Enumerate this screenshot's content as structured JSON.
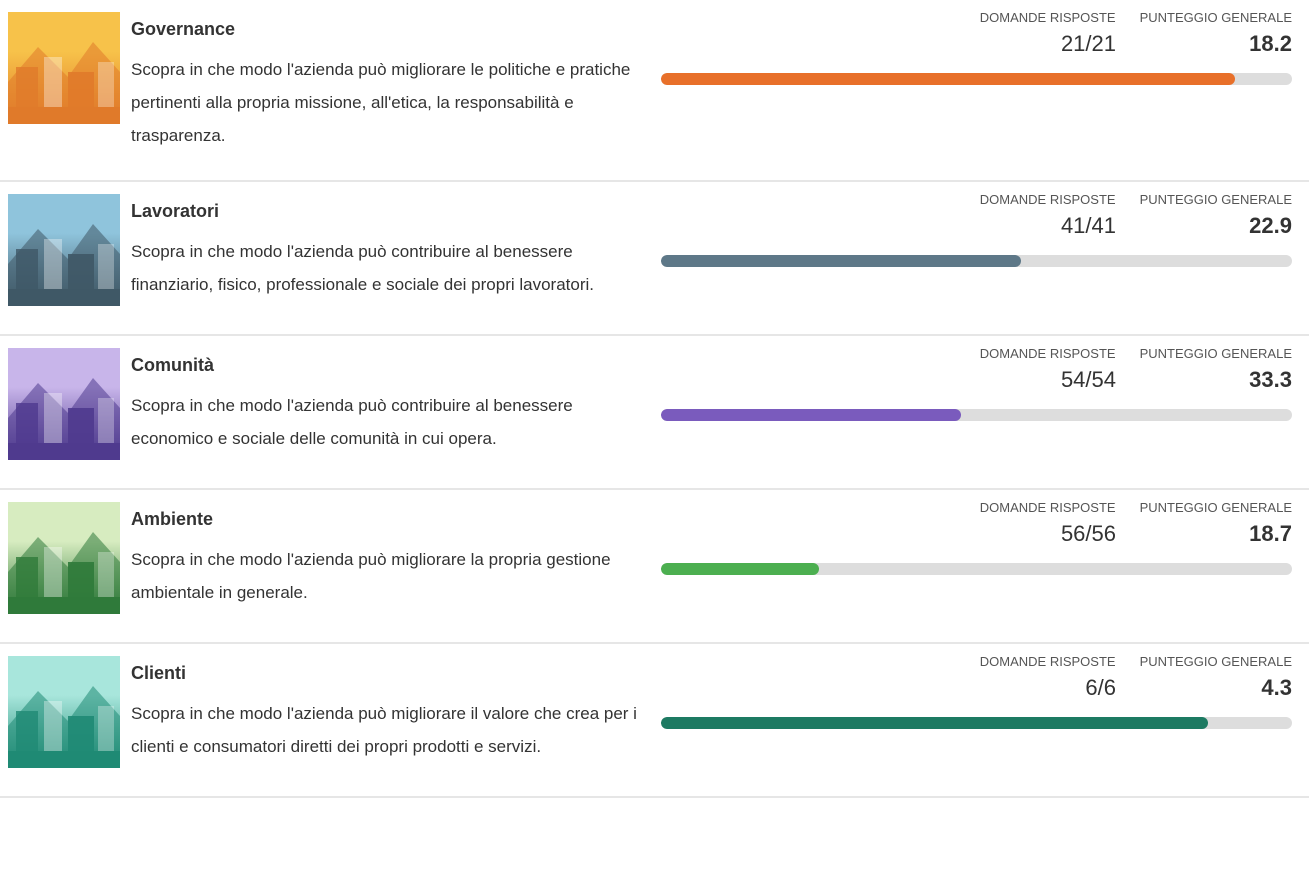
{
  "items": [
    {
      "title": "Governance",
      "description": "Scopra in che modo l'azienda può migliorare le politiche e pratiche pertinenti alla propria missione, all'etica, la responsabilità e trasparenza.",
      "answered_label": "DOMANDE RISPOSTE",
      "answered": "21/21",
      "score_label": "PUNTEGGIO GENERALE",
      "score": 18.2,
      "bar_percent": 91,
      "color": "#e8702a",
      "thumb": [
        "#f7c24a",
        "#e07a2a"
      ]
    },
    {
      "title": "Lavoratori",
      "description": "Scopra in che modo l'azienda può contribuire al benessere finanziario, fisico, professionale e sociale dei propri lavoratori.",
      "answered_label": "DOMANDE RISPOSTE",
      "answered": "41/41",
      "score_label": "PUNTEGGIO GENERALE",
      "score": 22.9,
      "bar_percent": 57,
      "color": "#5e7888",
      "thumb": [
        "#8fc4dc",
        "#3f5866"
      ]
    },
    {
      "title": "Comunità",
      "description": "Scopra in che modo l'azienda può contribuire al benessere economico e sociale delle comunità in cui opera.",
      "answered_label": "DOMANDE RISPOSTE",
      "answered": "54/54",
      "score_label": "PUNTEGGIO GENERALE",
      "score": 33.3,
      "bar_percent": 47.5,
      "color": "#7a5bbd",
      "thumb": [
        "#c8b5ea",
        "#4f3a8e"
      ]
    },
    {
      "title": "Ambiente",
      "description": "Scopra in che modo l'azienda può migliorare la propria gestione ambientale in generale.",
      "answered_label": "DOMANDE RISPOSTE",
      "answered": "56/56",
      "score_label": "PUNTEGGIO GENERALE",
      "score": 18.7,
      "bar_percent": 25,
      "color": "#4caf50",
      "thumb": [
        "#d7ecc0",
        "#2f7a3a"
      ]
    },
    {
      "title": "Clienti",
      "description": "Scopra in che modo l'azienda può migliorare il valore che crea per i clienti e consumatori diretti dei propri prodotti e servizi.",
      "answered_label": "DOMANDE RISPOSTE",
      "answered": "6/6",
      "score_label": "PUNTEGGIO GENERALE",
      "score": 4.3,
      "bar_percent": 86.7,
      "color": "#1d7a62",
      "thumb": [
        "#a8e6dc",
        "#1f8a74"
      ]
    }
  ]
}
